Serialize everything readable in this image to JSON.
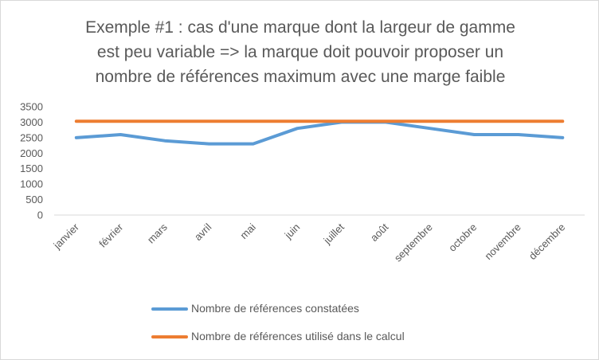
{
  "chart_data": {
    "type": "line",
    "title": "Exemple #1 : cas d'une marque dont la largeur de gamme est peu variable => la marque doit pouvoir proposer un nombre de références maximum avec une marge faible",
    "title_lines": [
      "Exemple #1 : cas d'une marque dont la largeur de gamme",
      "est peu variable => la marque doit pouvoir proposer un",
      "nombre de références maximum avec une marge faible"
    ],
    "categories": [
      "janvier",
      "février",
      "mars",
      "avril",
      "mai",
      "juin",
      "juillet",
      "août",
      "septembre",
      "octobre",
      "novembre",
      "décembre"
    ],
    "series": [
      {
        "name": "Nombre de références constatées",
        "color": "#5b9bd5",
        "values": [
          2500,
          2600,
          2400,
          2300,
          2300,
          2800,
          3000,
          3000,
          2800,
          2600,
          2600,
          2500
        ]
      },
      {
        "name": "Nombre de références utilisé dans le calcul",
        "color": "#ed7d31",
        "values": [
          3030,
          3030,
          3030,
          3030,
          3030,
          3030,
          3030,
          3030,
          3030,
          3030,
          3030,
          3030
        ]
      }
    ],
    "y_ticks": [
      "0",
      "500",
      "1000",
      "1500",
      "2000",
      "2500",
      "3000",
      "3500"
    ],
    "ylim": [
      0,
      3500
    ],
    "grid": false,
    "legend_position": "bottom",
    "xlabel": "",
    "ylabel": ""
  }
}
